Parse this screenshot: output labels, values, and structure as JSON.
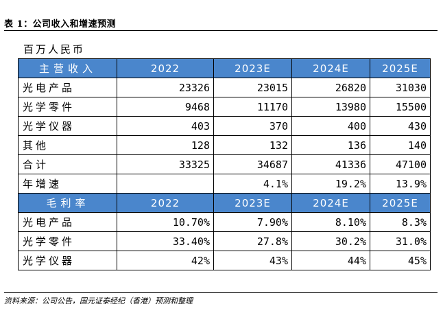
{
  "top_text": "",
  "caption": "表 1：公司收入和增速预测",
  "unit": "百万人民币",
  "tables": {
    "revenue_header": [
      "主营收入",
      "2022",
      "2023E",
      "2024E",
      "2025E"
    ],
    "revenue_rows": [
      [
        "光电产品",
        "23326",
        "23015",
        "26820",
        "31030"
      ],
      [
        "光学零件",
        "9468",
        "11170",
        "13980",
        "15500"
      ],
      [
        "光学仪器",
        "403",
        "370",
        "400",
        "430"
      ],
      [
        "其他",
        "128",
        "132",
        "136",
        "140"
      ],
      [
        "合计",
        "33325",
        "34687",
        "41336",
        "47100"
      ],
      [
        "年增速",
        "",
        "4.1%",
        "19.2%",
        "13.9%"
      ]
    ],
    "margin_header": [
      "毛利率",
      "2022",
      "2023E",
      "2024E",
      "2025E"
    ],
    "margin_rows": [
      [
        "光电产品",
        "10.70%",
        "7.90%",
        "8.10%",
        "8.3%"
      ],
      [
        "光学零件",
        "33.40%",
        "27.8%",
        "30.2%",
        "31.0%"
      ],
      [
        "光学仪器",
        "42%",
        "43%",
        "44%",
        "45%"
      ]
    ]
  },
  "source": "资料来源：公司公告，国元证泰经纪（香港）预测和整理",
  "colors": {
    "header_bg": "#4a86cc",
    "header_text": "#ffffff"
  }
}
